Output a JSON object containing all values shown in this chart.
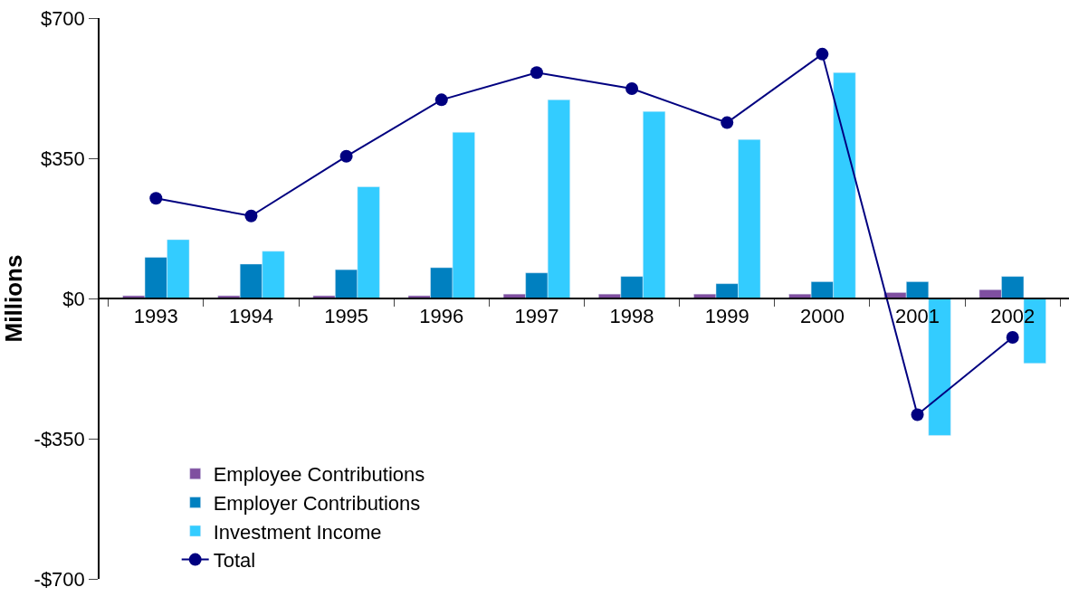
{
  "chart_data": {
    "type": "bar",
    "ylabel": "Millions",
    "categories": [
      "1993",
      "1994",
      "1995",
      "1996",
      "1997",
      "1998",
      "1999",
      "2000",
      "2001",
      "2002"
    ],
    "series": [
      {
        "name": "Employee Contributions",
        "color": "#7f4fa0",
        "values": [
          7,
          7,
          7,
          7,
          11,
          11,
          11,
          11,
          15,
          22
        ]
      },
      {
        "name": "Employer Contributions",
        "color": "#0080c0",
        "values": [
          103,
          86,
          72,
          77,
          64,
          55,
          37,
          42,
          42,
          55
        ]
      },
      {
        "name": "Investment Income",
        "color": "#33ccff",
        "values": [
          147,
          118,
          279,
          415,
          496,
          467,
          397,
          564,
          -342,
          -162
        ]
      },
      {
        "name": "Total",
        "type": "line",
        "color": "#000080",
        "marker": "circle",
        "values": [
          250,
          206,
          355,
          496,
          564,
          524,
          439,
          610,
          -290,
          -97
        ]
      }
    ],
    "ylim": [
      -700,
      700
    ],
    "yticks": [
      {
        "value": -700,
        "label": "-$700"
      },
      {
        "value": -350,
        "label": "-$350"
      },
      {
        "value": 0,
        "label": "$0"
      },
      {
        "value": 350,
        "label": "$350"
      },
      {
        "value": 700,
        "label": "$700"
      }
    ],
    "legend": "bottom left"
  }
}
